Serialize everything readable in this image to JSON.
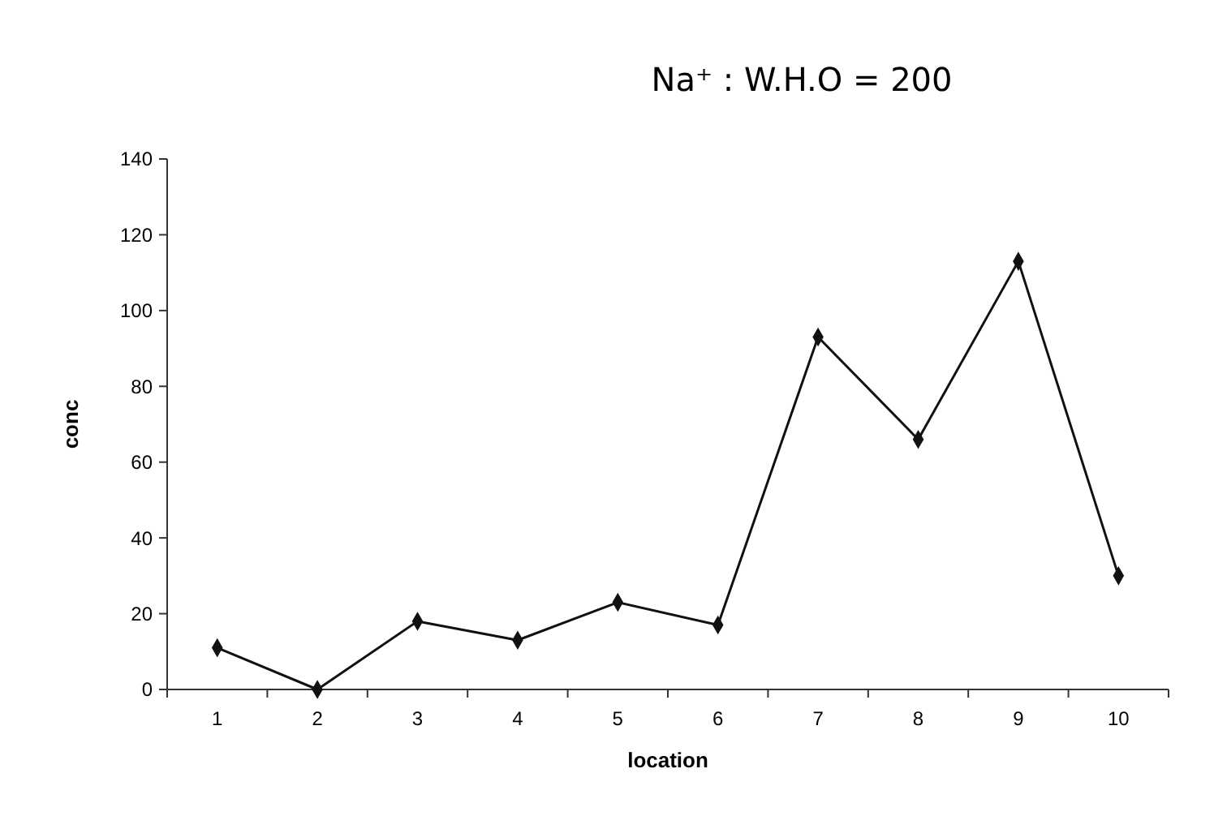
{
  "chart_data": {
    "type": "line",
    "title": "Na⁺ : W.H.O = 200",
    "xlabel": "location",
    "ylabel": "conc",
    "categories": [
      "1",
      "2",
      "3",
      "4",
      "5",
      "6",
      "7",
      "8",
      "9",
      "10"
    ],
    "series": [
      {
        "color": "#111111",
        "values": [
          11,
          0,
          18,
          13,
          23,
          17,
          93,
          66,
          113,
          30
        ]
      }
    ],
    "ylim": [
      0,
      140
    ],
    "yticks": [
      0,
      20,
      40,
      60,
      80,
      100,
      120,
      140
    ],
    "grid": false,
    "marker": "diamond",
    "line_style": "solid"
  }
}
